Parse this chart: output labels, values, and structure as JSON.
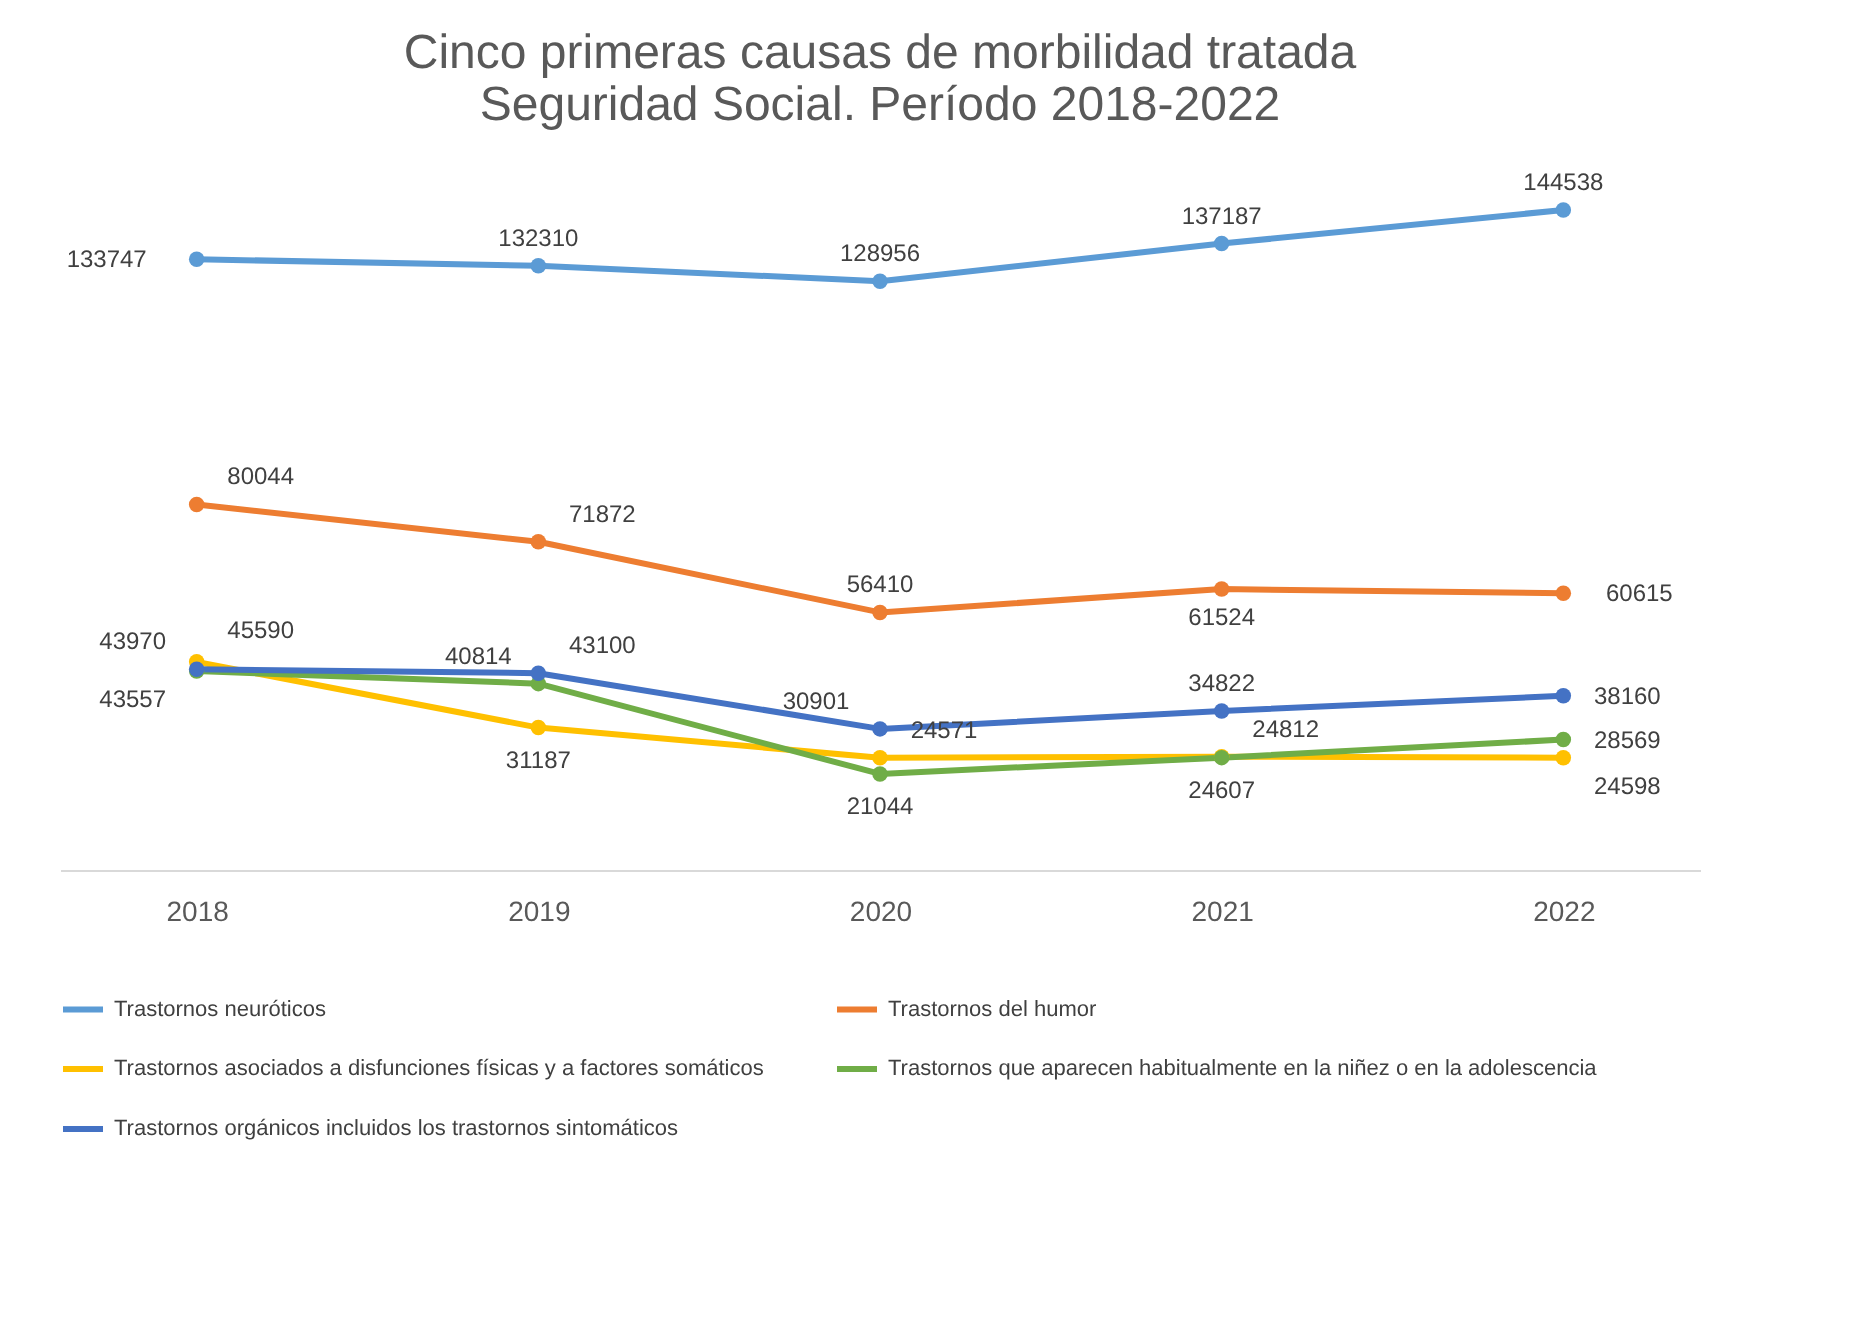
{
  "chart_data": {
    "type": "line",
    "title": "Cinco primeras causas de morbilidad tratada",
    "subtitle": "Seguridad Social. Período 2018-2022",
    "categories": [
      "2018",
      "2019",
      "2020",
      "2021",
      "2022"
    ],
    "series": [
      {
        "name": "Trastornos neuróticos",
        "color": "#5b9bd5",
        "values": [
          133747,
          132310,
          128956,
          137187,
          144538
        ]
      },
      {
        "name": "Trastornos del humor",
        "color": "#ed7d31",
        "values": [
          80044,
          71872,
          56410,
          61524,
          60615
        ]
      },
      {
        "name": "Trastornos asociados a disfunciones físicas y a factores somáticos",
        "color": "#ffc000",
        "values": [
          45590,
          31187,
          24571,
          24812,
          24598
        ]
      },
      {
        "name": "Trastornos que aparecen habitualmente en la niñez o en la adolescencia",
        "color": "#70ad47",
        "values": [
          43557,
          40814,
          21044,
          24607,
          28569
        ]
      },
      {
        "name": "Trastornos orgánicos incluidos los trastornos sintomáticos",
        "color": "#4472c4",
        "values": [
          43970,
          43100,
          30901,
          34822,
          38160
        ]
      }
    ],
    "tick_labels": "x",
    "grid": false,
    "legend": "bottom",
    "marker": "circle",
    "data_labels": true
  }
}
